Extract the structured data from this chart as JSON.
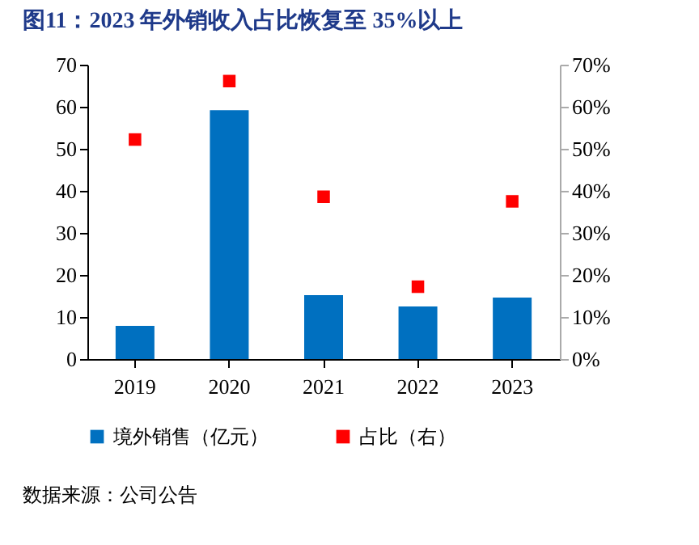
{
  "chart_data": {
    "type": "bar",
    "title": "图11：2023 年外销收入占比恢复至 35%以上",
    "categories": [
      "2019",
      "2020",
      "2021",
      "2022",
      "2023"
    ],
    "series": [
      {
        "name": "境外销售（亿元）",
        "color": "#0070c0",
        "values": [
          7.9,
          59.2,
          15.2,
          12.5,
          14.6
        ]
      },
      {
        "name": "占比（右）",
        "type": "scatter",
        "axis": "y2",
        "color": "#ff0000",
        "values": [
          52.2,
          66.1,
          38.6,
          17.2,
          37.5
        ]
      }
    ],
    "ylim": [
      0,
      70
    ],
    "yticks": [
      0,
      10,
      20,
      30,
      40,
      50,
      60,
      70
    ],
    "y2lim": [
      0,
      70
    ],
    "y2ticks": [
      {
        "value": 0,
        "label": "0%"
      },
      {
        "value": 10,
        "label": "10%"
      },
      {
        "value": 20,
        "label": "20%"
      },
      {
        "value": 30,
        "label": "30%"
      },
      {
        "value": 40,
        "label": "40%"
      },
      {
        "value": 50,
        "label": "50%"
      },
      {
        "value": 60,
        "label": "60%"
      },
      {
        "value": 70,
        "label": "70%"
      }
    ],
    "marker": "square",
    "legend": "bottom",
    "grid": false,
    "annotations": [
      "数据来源：公司公告"
    ]
  }
}
